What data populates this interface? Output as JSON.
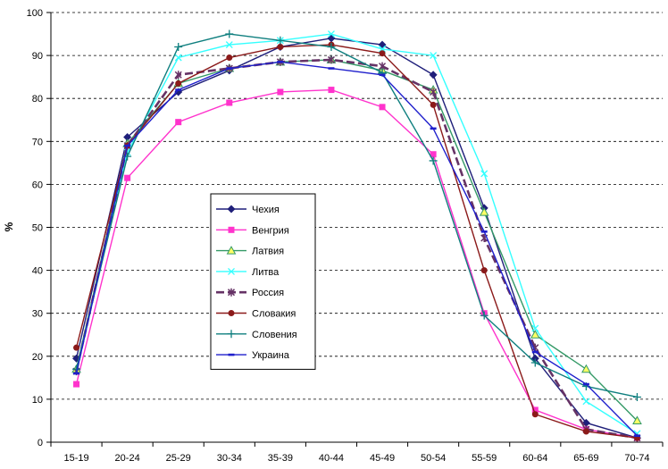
{
  "chart_data": {
    "type": "line",
    "ylabel": "%",
    "xlabel": "",
    "title": "",
    "ylim": [
      0,
      100
    ],
    "y_ticks": [
      0,
      10,
      20,
      30,
      40,
      50,
      60,
      70,
      80,
      90,
      100
    ],
    "grid": "horizontal dashed",
    "legend_position": "center-left",
    "categories": [
      "15-19",
      "20-24",
      "25-29",
      "30-34",
      "35-39",
      "40-44",
      "45-49",
      "50-54",
      "55-59",
      "60-64",
      "65-69",
      "70-74"
    ],
    "series": [
      {
        "name": "Чехия",
        "color": "#1f1f7a",
        "marker": "diamond",
        "dash": "solid",
        "values": [
          19.5,
          71,
          81.5,
          86.5,
          92,
          94,
          92.5,
          85.5,
          54.5,
          19.5,
          4.5,
          1
        ]
      },
      {
        "name": "Венгрия",
        "color": "#ff33cc",
        "marker": "square",
        "dash": "solid",
        "values": [
          13.5,
          61.5,
          74.5,
          79,
          81.5,
          82,
          78,
          67,
          30,
          7.5,
          3,
          1
        ]
      },
      {
        "name": "Латвия",
        "color": "#339966",
        "marker": "triangle",
        "dash": "solid",
        "values": [
          17,
          69.5,
          83.5,
          87,
          88.5,
          89,
          86.5,
          82,
          53.5,
          25,
          17,
          5
        ]
      },
      {
        "name": "Литва",
        "color": "#33ffff",
        "marker": "x",
        "dash": "solid",
        "values": [
          16.5,
          67.5,
          89.5,
          92.5,
          93.5,
          95,
          91.5,
          90,
          62.5,
          26.5,
          9.5,
          2
        ]
      },
      {
        "name": "Россия",
        "color": "#663366",
        "marker": "star",
        "dash": "dashed",
        "values": [
          16.5,
          69,
          85.5,
          87,
          88.5,
          89,
          87.5,
          81.5,
          47.5,
          22,
          3,
          1
        ]
      },
      {
        "name": "Словакия",
        "color": "#8b1a1a",
        "marker": "circle",
        "dash": "solid",
        "values": [
          22,
          69,
          83.5,
          89.5,
          92,
          92.5,
          90.5,
          78.5,
          40,
          6.5,
          2.5,
          1
        ]
      },
      {
        "name": "Словения",
        "color": "#0f7f7f",
        "marker": "plus",
        "dash": "solid",
        "values": [
          17,
          66.5,
          92,
          95,
          93.5,
          92,
          86,
          65.5,
          29.5,
          18.5,
          13,
          10.5
        ]
      },
      {
        "name": "Украина",
        "color": "#1f1fcc",
        "marker": "bar",
        "dash": "solid",
        "values": [
          16,
          69,
          82,
          87,
          88.5,
          87,
          85.5,
          73,
          49,
          21,
          13.5,
          1.5
        ]
      }
    ]
  }
}
